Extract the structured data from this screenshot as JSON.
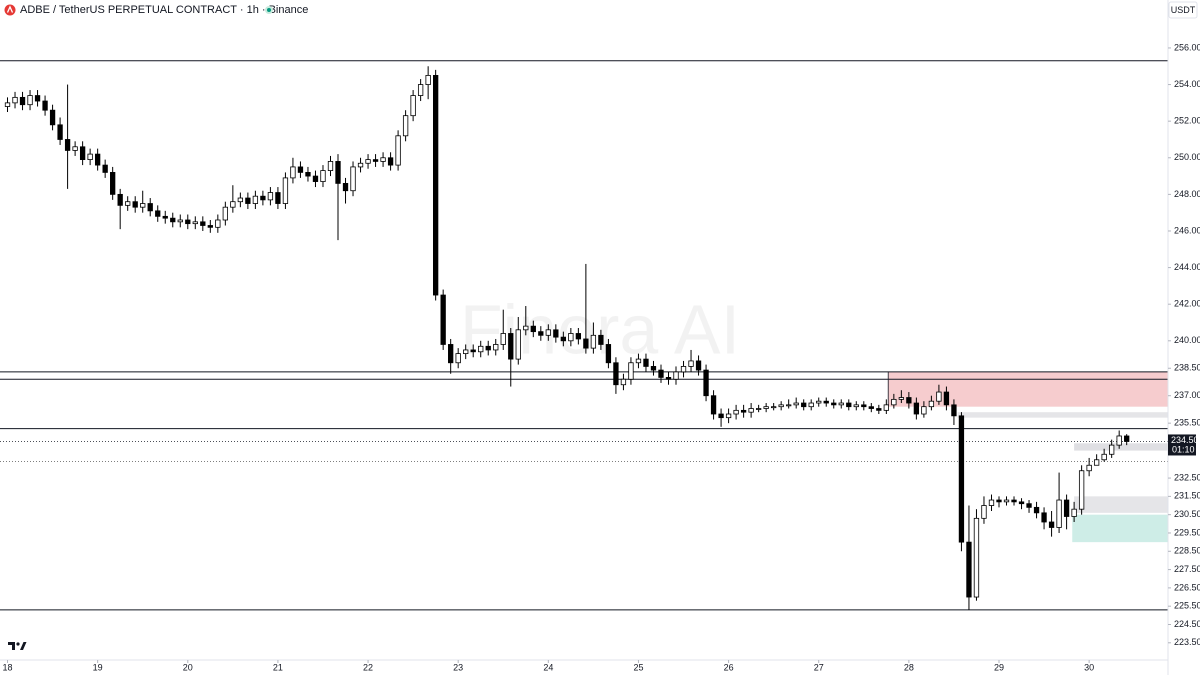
{
  "chart_data": {
    "type": "candlestick",
    "title": "ADBE / TetherUS PERPETUAL CONTRACT · 1h · Binance",
    "currency": "USDT",
    "watermark": "Finora AI",
    "up_color": "#ffffff",
    "down_color": "#000000",
    "edge_color": "#000000",
    "xlim": [
      -2,
      309
    ],
    "xticks": [
      {
        "value": 0,
        "label": "18"
      },
      {
        "value": 24,
        "label": "19"
      },
      {
        "value": 48,
        "label": "20"
      },
      {
        "value": 72,
        "label": "21"
      },
      {
        "value": 96,
        "label": "22"
      },
      {
        "value": 120,
        "label": "23"
      },
      {
        "value": 144,
        "label": "24"
      },
      {
        "value": 168,
        "label": "25"
      },
      {
        "value": 192,
        "label": "26"
      },
      {
        "value": 216,
        "label": "27"
      },
      {
        "value": 240,
        "label": "28"
      },
      {
        "value": 264,
        "label": "29"
      },
      {
        "value": 288,
        "label": "30"
      }
    ],
    "ylim": [
      222.56,
      258.62
    ],
    "yticks": [
      {
        "value": 256,
        "label": "256.00"
      },
      {
        "value": 254,
        "label": "254.00"
      },
      {
        "value": 252,
        "label": "252.00"
      },
      {
        "value": 250,
        "label": "250.00"
      },
      {
        "value": 248,
        "label": "248.00"
      },
      {
        "value": 246,
        "label": "246.00"
      },
      {
        "value": 244,
        "label": "244.00"
      },
      {
        "value": 242,
        "label": "242.00"
      },
      {
        "value": 240,
        "label": "240.00"
      },
      {
        "value": 238.5,
        "label": "238.50"
      },
      {
        "value": 237,
        "label": "237.00"
      },
      {
        "value": 235.5,
        "label": "235.50"
      },
      {
        "value": 232.5,
        "label": "232.50"
      },
      {
        "value": 231.5,
        "label": "231.50"
      },
      {
        "value": 230.5,
        "label": "230.50"
      },
      {
        "value": 229.5,
        "label": "229.50"
      },
      {
        "value": 228.5,
        "label": "228.50"
      },
      {
        "value": 227.5,
        "label": "227.50"
      },
      {
        "value": 226.5,
        "label": "226.50"
      },
      {
        "value": 225.5,
        "label": "225.50"
      },
      {
        "value": 224.5,
        "label": "224.50"
      },
      {
        "value": 223.5,
        "label": "223.50"
      }
    ],
    "price_label": {
      "value": 234.5,
      "label": "234.50",
      "countdown": "01:10"
    },
    "levels": [
      255.3,
      238.3,
      237.9,
      235.2,
      225.3
    ],
    "dotted_levels": [
      233.4
    ],
    "zones": [
      {
        "x": 234.5,
        "top": 238.3,
        "bottom": 236.4,
        "color": "#f5c6c9"
      },
      {
        "x": 253,
        "top": 236.1,
        "bottom": 235.8,
        "color": "#e2e2e5"
      },
      {
        "x": 284,
        "top": 234.4,
        "bottom": 234.0,
        "color": "#dcdce0"
      },
      {
        "x": 284,
        "top": 231.5,
        "bottom": 230.6,
        "color": "#e2e2e5"
      },
      {
        "x": 283.5,
        "top": 230.5,
        "bottom": 229.0,
        "color": "#c9ebe4"
      }
    ],
    "x": [
      0,
      2,
      4,
      6,
      8,
      10,
      12,
      14,
      16,
      18,
      20,
      22,
      24,
      26,
      28,
      30,
      32,
      34,
      36,
      38,
      40,
      42,
      44,
      46,
      48,
      50,
      52,
      54,
      56,
      58,
      60,
      62,
      64,
      66,
      68,
      70,
      72,
      74,
      76,
      78,
      80,
      82,
      84,
      86,
      88,
      90,
      92,
      94,
      96,
      98,
      100,
      102,
      104,
      106,
      108,
      110,
      112,
      114,
      116,
      118,
      120,
      122,
      124,
      126,
      128,
      130,
      132,
      134,
      136,
      138,
      140,
      142,
      144,
      146,
      148,
      150,
      152,
      154,
      156,
      158,
      160,
      162,
      164,
      166,
      168,
      170,
      172,
      174,
      176,
      178,
      180,
      182,
      184,
      186,
      188,
      190,
      192,
      194,
      196,
      198,
      200,
      202,
      204,
      206,
      208,
      210,
      212,
      214,
      216,
      218,
      220,
      222,
      224,
      226,
      228,
      230,
      232,
      234,
      236,
      238,
      240,
      242,
      244,
      246,
      248,
      250,
      252,
      254,
      256,
      258,
      260,
      262,
      264,
      266,
      268,
      270,
      272,
      274,
      276,
      278,
      280,
      282,
      284,
      286,
      288,
      290,
      292,
      294,
      296,
      298
    ],
    "ohlc": [
      [
        252.8,
        253.3,
        252.5,
        253.0
      ],
      [
        253.0,
        253.6,
        252.7,
        253.3
      ],
      [
        253.3,
        253.6,
        252.6,
        252.9
      ],
      [
        252.9,
        253.7,
        252.6,
        253.4
      ],
      [
        253.4,
        253.7,
        252.8,
        253.1
      ],
      [
        253.1,
        253.4,
        252.3,
        252.6
      ],
      [
        252.6,
        252.9,
        251.5,
        251.8
      ],
      [
        251.8,
        252.2,
        250.7,
        251.0
      ],
      [
        251.0,
        254.0,
        248.3,
        250.4
      ],
      [
        250.4,
        250.9,
        250.1,
        250.6
      ],
      [
        250.6,
        250.9,
        249.6,
        249.9
      ],
      [
        249.9,
        250.5,
        249.6,
        250.2
      ],
      [
        250.2,
        250.5,
        249.3,
        249.6
      ],
      [
        249.6,
        249.9,
        248.9,
        249.2
      ],
      [
        249.2,
        249.5,
        247.7,
        248.0
      ],
      [
        248.0,
        248.3,
        246.1,
        247.4
      ],
      [
        247.4,
        247.9,
        247.1,
        247.6
      ],
      [
        247.6,
        247.9,
        247.0,
        247.3
      ],
      [
        247.3,
        248.2,
        247.0,
        247.5
      ],
      [
        247.5,
        247.8,
        246.8,
        247.1
      ],
      [
        247.1,
        247.4,
        246.5,
        246.8
      ],
      [
        246.8,
        247.1,
        246.4,
        246.7
      ],
      [
        246.7,
        247.0,
        246.2,
        246.5
      ],
      [
        246.5,
        246.9,
        246.2,
        246.6
      ],
      [
        246.6,
        246.9,
        246.1,
        246.4
      ],
      [
        246.4,
        246.8,
        246.1,
        246.5
      ],
      [
        246.5,
        246.8,
        246.0,
        246.3
      ],
      [
        246.3,
        246.6,
        245.9,
        246.2
      ],
      [
        246.2,
        246.9,
        245.9,
        246.6
      ],
      [
        246.6,
        247.6,
        246.3,
        247.3
      ],
      [
        247.3,
        248.5,
        247.0,
        247.6
      ],
      [
        247.6,
        248.1,
        247.3,
        247.8
      ],
      [
        247.8,
        248.1,
        247.2,
        247.5
      ],
      [
        247.5,
        248.2,
        247.2,
        247.9
      ],
      [
        247.9,
        248.2,
        247.4,
        247.7
      ],
      [
        247.7,
        248.4,
        247.4,
        248.1
      ],
      [
        248.1,
        248.4,
        247.2,
        247.5
      ],
      [
        247.5,
        249.2,
        247.2,
        248.9
      ],
      [
        248.9,
        250.0,
        248.6,
        249.5
      ],
      [
        249.5,
        249.8,
        248.9,
        249.2
      ],
      [
        249.2,
        249.5,
        248.7,
        249.0
      ],
      [
        249.0,
        249.3,
        248.4,
        248.7
      ],
      [
        248.7,
        249.6,
        248.4,
        249.3
      ],
      [
        249.3,
        250.1,
        249.0,
        249.8
      ],
      [
        249.8,
        250.2,
        245.5,
        248.6
      ],
      [
        248.6,
        248.9,
        247.5,
        248.2
      ],
      [
        248.2,
        249.8,
        247.9,
        249.5
      ],
      [
        249.5,
        250.0,
        249.2,
        249.7
      ],
      [
        249.7,
        250.2,
        249.4,
        249.9
      ],
      [
        249.9,
        250.2,
        249.5,
        249.8
      ],
      [
        249.8,
        250.3,
        249.5,
        250.0
      ],
      [
        250.0,
        250.3,
        249.3,
        249.6
      ],
      [
        249.6,
        251.5,
        249.3,
        251.2
      ],
      [
        251.2,
        252.6,
        250.9,
        252.3
      ],
      [
        252.3,
        253.7,
        252.0,
        253.4
      ],
      [
        253.4,
        254.3,
        253.1,
        254.0
      ],
      [
        254.0,
        255.0,
        253.2,
        254.5
      ],
      [
        254.5,
        254.8,
        242.2,
        242.5
      ],
      [
        242.5,
        242.8,
        239.5,
        239.8
      ],
      [
        239.8,
        240.1,
        238.2,
        238.8
      ],
      [
        238.8,
        239.6,
        238.5,
        239.3
      ],
      [
        239.3,
        239.8,
        239.0,
        239.5
      ],
      [
        239.5,
        239.8,
        239.1,
        239.4
      ],
      [
        239.4,
        240.0,
        239.1,
        239.7
      ],
      [
        239.7,
        240.0,
        239.2,
        239.5
      ],
      [
        239.5,
        240.1,
        239.2,
        239.8
      ],
      [
        239.8,
        241.7,
        239.5,
        240.4
      ],
      [
        240.4,
        240.7,
        237.5,
        239.0
      ],
      [
        239.0,
        241.3,
        238.7,
        240.6
      ],
      [
        240.6,
        241.9,
        240.3,
        240.8
      ],
      [
        240.8,
        241.1,
        240.2,
        240.5
      ],
      [
        240.5,
        240.8,
        240.0,
        240.3
      ],
      [
        240.3,
        240.9,
        240.0,
        240.6
      ],
      [
        240.6,
        240.9,
        239.9,
        240.2
      ],
      [
        240.2,
        240.5,
        239.7,
        240.0
      ],
      [
        240.0,
        240.7,
        239.7,
        240.4
      ],
      [
        240.4,
        240.7,
        239.8,
        240.1
      ],
      [
        240.1,
        244.2,
        239.3,
        239.6
      ],
      [
        239.6,
        241.0,
        239.3,
        240.3
      ],
      [
        240.3,
        240.6,
        239.5,
        239.8
      ],
      [
        239.8,
        240.1,
        238.5,
        238.8
      ],
      [
        238.8,
        239.1,
        237.1,
        237.6
      ],
      [
        237.6,
        238.2,
        237.3,
        237.9
      ],
      [
        237.9,
        239.1,
        237.6,
        238.8
      ],
      [
        238.8,
        239.3,
        238.5,
        239.0
      ],
      [
        239.0,
        239.3,
        238.3,
        238.6
      ],
      [
        238.6,
        238.9,
        238.1,
        238.4
      ],
      [
        238.4,
        238.7,
        237.7,
        238.0
      ],
      [
        238.0,
        238.3,
        237.6,
        237.9
      ],
      [
        237.9,
        238.6,
        237.6,
        238.3
      ],
      [
        238.3,
        238.9,
        238.0,
        238.6
      ],
      [
        238.6,
        239.5,
        238.3,
        238.9
      ],
      [
        238.9,
        239.2,
        238.1,
        238.4
      ],
      [
        238.4,
        238.7,
        236.7,
        237.0
      ],
      [
        237.0,
        237.3,
        235.7,
        236.0
      ],
      [
        236.0,
        236.3,
        235.3,
        235.8
      ],
      [
        235.8,
        236.3,
        235.5,
        236.0
      ],
      [
        236.0,
        236.5,
        235.7,
        236.2
      ],
      [
        236.2,
        236.5,
        235.8,
        236.1
      ],
      [
        236.1,
        236.6,
        235.8,
        236.3
      ],
      [
        236.3,
        236.5,
        236.1,
        236.3
      ],
      [
        236.3,
        236.6,
        236.1,
        236.4
      ],
      [
        236.4,
        236.6,
        236.2,
        236.4
      ],
      [
        236.4,
        236.7,
        236.2,
        236.5
      ],
      [
        236.5,
        236.8,
        236.3,
        236.5
      ],
      [
        236.5,
        236.9,
        236.3,
        236.6
      ],
      [
        236.6,
        236.8,
        236.2,
        236.4
      ],
      [
        236.4,
        236.8,
        236.2,
        236.6
      ],
      [
        236.6,
        236.9,
        236.4,
        236.7
      ],
      [
        236.7,
        236.9,
        236.4,
        236.6
      ],
      [
        236.6,
        236.8,
        236.3,
        236.5
      ],
      [
        236.5,
        236.8,
        236.3,
        236.6
      ],
      [
        236.6,
        236.8,
        236.2,
        236.4
      ],
      [
        236.4,
        236.7,
        236.2,
        236.5
      ],
      [
        236.5,
        236.7,
        236.2,
        236.4
      ],
      [
        236.4,
        236.6,
        236.1,
        236.3
      ],
      [
        236.3,
        236.5,
        236.0,
        236.2
      ],
      [
        236.2,
        236.8,
        236.0,
        236.5
      ],
      [
        236.5,
        237.1,
        236.3,
        236.8
      ],
      [
        236.8,
        237.3,
        236.6,
        236.9
      ],
      [
        236.9,
        237.2,
        236.3,
        236.6
      ],
      [
        236.6,
        236.9,
        235.7,
        236.0
      ],
      [
        236.0,
        236.7,
        235.8,
        236.4
      ],
      [
        236.4,
        237.0,
        236.2,
        236.7
      ],
      [
        236.7,
        237.6,
        236.5,
        237.2
      ],
      [
        237.2,
        237.5,
        236.2,
        236.5
      ],
      [
        236.5,
        236.8,
        235.4,
        235.9
      ],
      [
        235.9,
        236.1,
        228.5,
        229.0
      ],
      [
        229.0,
        231.0,
        225.3,
        226.0
      ],
      [
        226.0,
        230.8,
        225.8,
        230.3
      ],
      [
        230.3,
        231.5,
        230.0,
        231.0
      ],
      [
        231.0,
        231.6,
        230.7,
        231.3
      ],
      [
        231.3,
        231.5,
        230.9,
        231.2
      ],
      [
        231.2,
        231.5,
        231.0,
        231.3
      ],
      [
        231.3,
        231.5,
        231.0,
        231.2
      ],
      [
        231.2,
        231.4,
        230.8,
        231.1
      ],
      [
        231.1,
        231.3,
        230.6,
        230.9
      ],
      [
        230.9,
        231.2,
        230.3,
        230.6
      ],
      [
        230.6,
        230.9,
        229.7,
        230.1
      ],
      [
        230.1,
        230.7,
        229.3,
        229.8
      ],
      [
        229.8,
        232.8,
        229.5,
        231.3
      ],
      [
        231.3,
        231.6,
        229.7,
        230.4
      ],
      [
        230.4,
        231.2,
        230.1,
        230.8
      ],
      [
        230.8,
        233.2,
        230.5,
        232.9
      ],
      [
        232.9,
        233.6,
        232.6,
        233.2
      ],
      [
        233.2,
        233.8,
        233.2,
        233.5
      ],
      [
        233.5,
        234.1,
        233.4,
        233.8
      ],
      [
        233.8,
        234.6,
        233.6,
        234.3
      ],
      [
        234.3,
        235.1,
        234.1,
        234.8
      ],
      [
        234.8,
        234.9,
        234.3,
        234.5
      ]
    ]
  }
}
